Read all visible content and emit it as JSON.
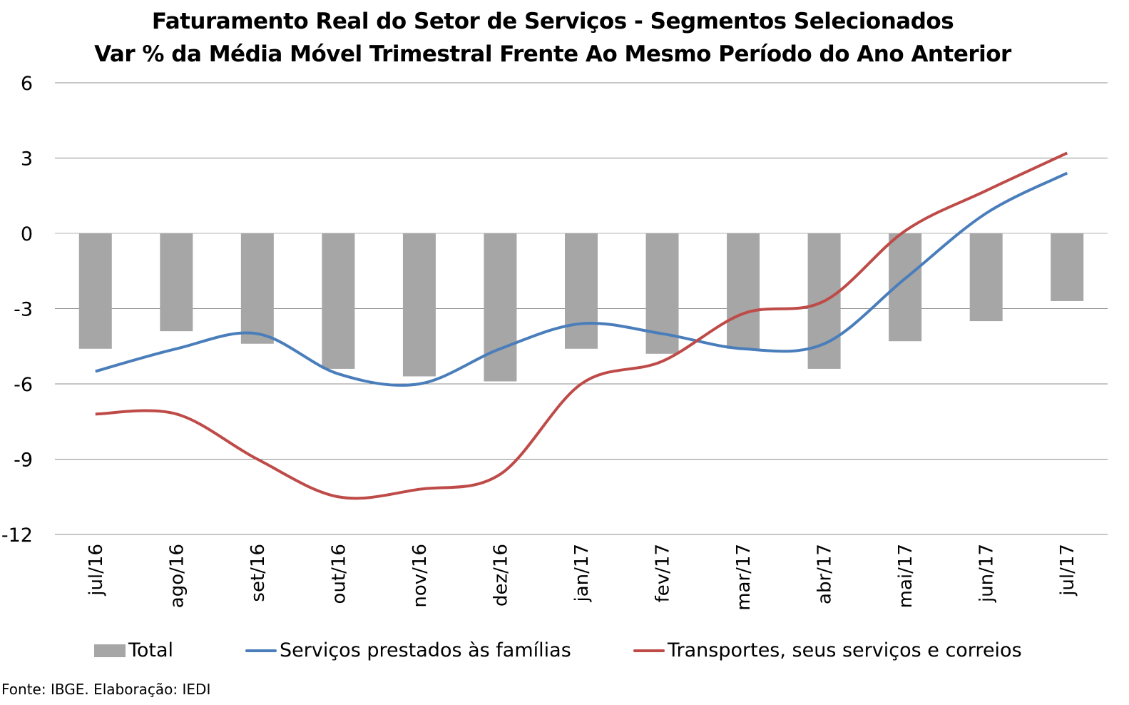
{
  "chart_data": {
    "type": "bar+line",
    "title": "Faturamento Real do Setor de Serviços - Segmentos Selecionados",
    "subtitle": "Var % da Média Móvel Trimestral Frente Ao Mesmo Período do Ano Anterior",
    "categories": [
      "jul/16",
      "ago/16",
      "set/16",
      "out/16",
      "nov/16",
      "dez/16",
      "jan/17",
      "fev/17",
      "mar/17",
      "abr/17",
      "mai/17",
      "jun/17",
      "jul/17"
    ],
    "ylim": [
      -12,
      6
    ],
    "yticks": [
      "6",
      "3",
      "0",
      "-3",
      "-6",
      "-9",
      "-12"
    ],
    "grid": true,
    "legend_position": "bottom",
    "series": [
      {
        "name": "Total",
        "type": "bar",
        "color": "#a6a6a6",
        "values": [
          -4.6,
          -3.9,
          -4.4,
          -5.4,
          -5.7,
          -5.9,
          -4.6,
          -4.8,
          -4.6,
          -5.4,
          -4.3,
          -3.5,
          -2.7
        ]
      },
      {
        "name": "Serviços prestados às famílias",
        "type": "line",
        "color": "#4a7ebb",
        "values": [
          -5.5,
          -4.6,
          -4.0,
          -5.6,
          -6.0,
          -4.6,
          -3.6,
          -4.0,
          -4.6,
          -4.4,
          -1.8,
          0.8,
          2.4
        ]
      },
      {
        "name": "Transportes, seus serviços e correios",
        "type": "line",
        "color": "#be4b48",
        "values": [
          -7.2,
          -7.2,
          -9.0,
          -10.5,
          -10.2,
          -9.6,
          -6.0,
          -5.1,
          -3.2,
          -2.7,
          0.1,
          1.7,
          3.2
        ]
      }
    ]
  },
  "source": "Fonte: IBGE. Elaboração: IEDI"
}
